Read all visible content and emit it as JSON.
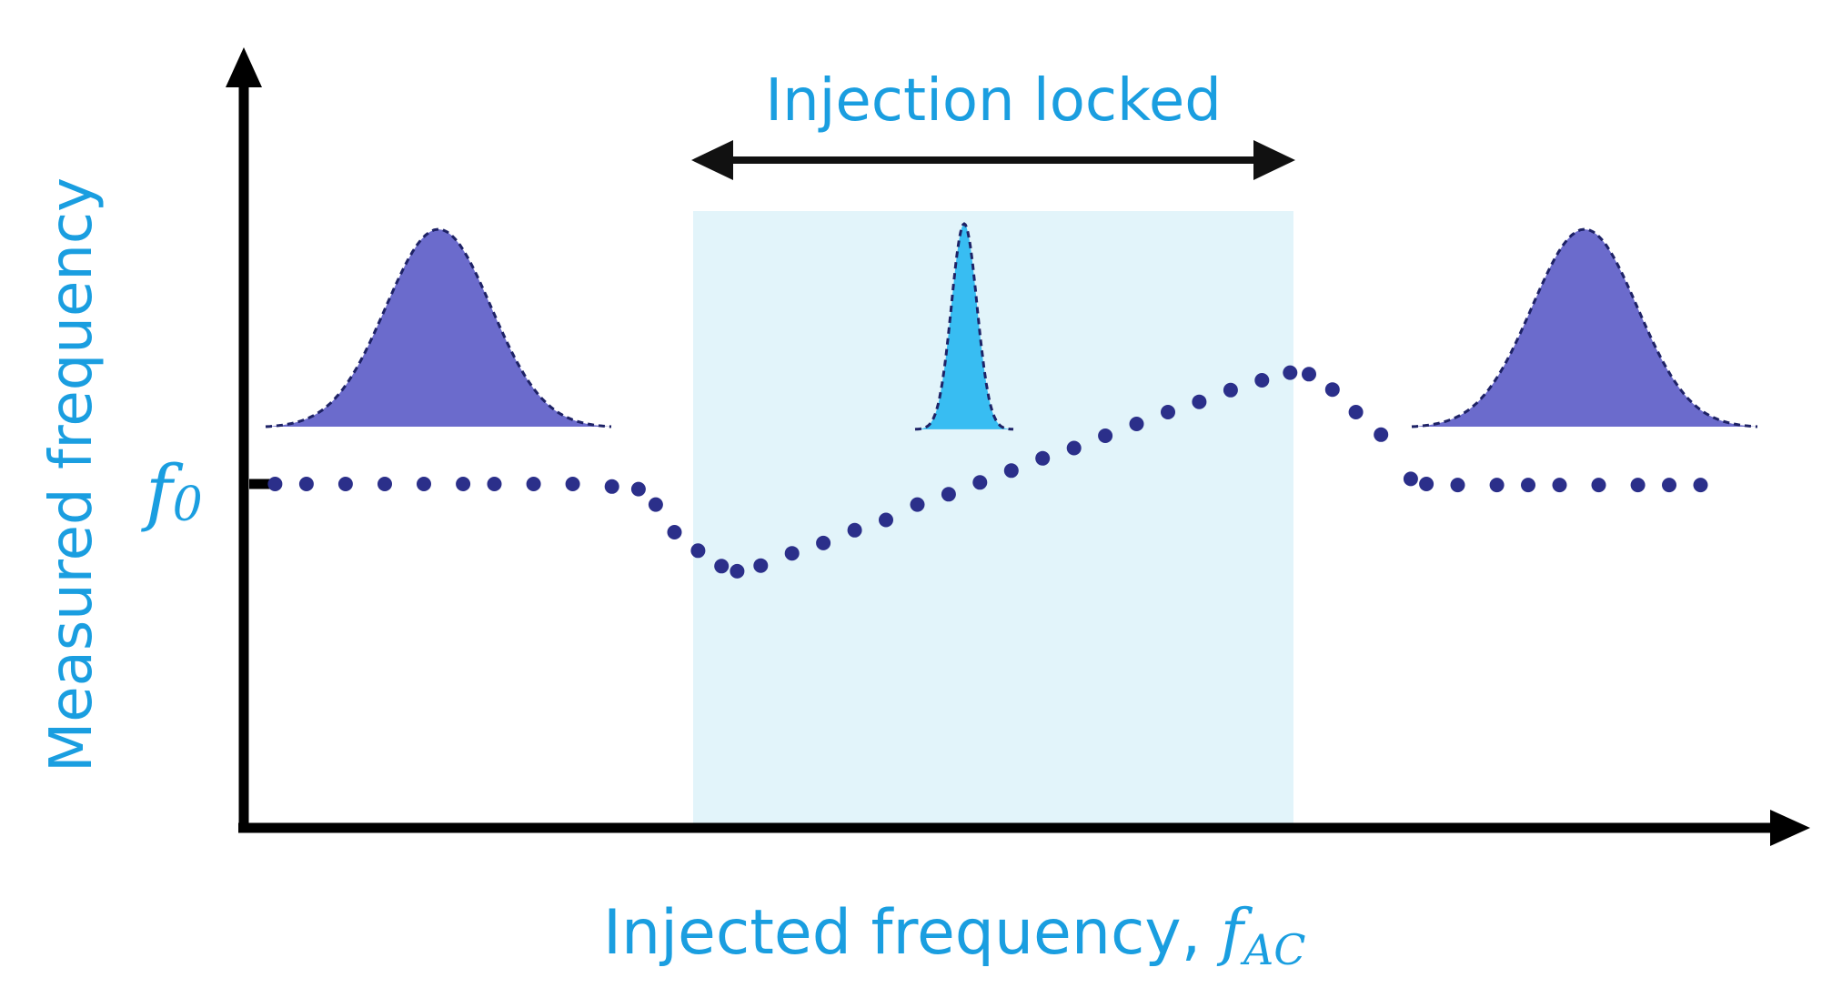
{
  "colors": {
    "accent": "#1a9ee0",
    "axis": "#000000",
    "dots": "#2b2f8a",
    "peak_broad": "#6b6bcc",
    "peak_outline": "#1e2266",
    "peak_narrow": "#38bdf2",
    "locked_region": "#e2f4fa",
    "arrow": "#111111"
  },
  "labels": {
    "top_region": "Injection locked",
    "y_axis": "Measured frequency",
    "x_axis": "Injected frequency, ",
    "x_axis_symbol": "f",
    "x_axis_subscript": "AC",
    "y_tick_symbol": "f",
    "y_tick_subscript": "0"
  },
  "chart_data": {
    "type": "scatter",
    "description_note": "",
    "x_range": [
      0,
      1
    ],
    "y_range": [
      0,
      1
    ],
    "locked_range": [
      0.28,
      0.67
    ],
    "f0_level": 0.67,
    "points": [
      [
        0.02,
        0.67
      ],
      [
        0.04,
        0.67
      ],
      [
        0.065,
        0.67
      ],
      [
        0.09,
        0.67
      ],
      [
        0.115,
        0.67
      ],
      [
        0.14,
        0.67
      ],
      [
        0.16,
        0.67
      ],
      [
        0.185,
        0.67
      ],
      [
        0.21,
        0.67
      ],
      [
        0.235,
        0.665
      ],
      [
        0.252,
        0.66
      ],
      [
        0.263,
        0.63
      ],
      [
        0.275,
        0.576
      ],
      [
        0.29,
        0.54
      ],
      [
        0.305,
        0.51
      ],
      [
        0.315,
        0.5
      ],
      [
        0.33,
        0.511
      ],
      [
        0.35,
        0.535
      ],
      [
        0.37,
        0.555
      ],
      [
        0.39,
        0.58
      ],
      [
        0.41,
        0.6
      ],
      [
        0.43,
        0.63
      ],
      [
        0.45,
        0.65
      ],
      [
        0.47,
        0.673
      ],
      [
        0.49,
        0.696
      ],
      [
        0.51,
        0.72
      ],
      [
        0.53,
        0.74
      ],
      [
        0.55,
        0.764
      ],
      [
        0.57,
        0.787
      ],
      [
        0.59,
        0.81
      ],
      [
        0.61,
        0.83
      ],
      [
        0.63,
        0.853
      ],
      [
        0.65,
        0.872
      ],
      [
        0.668,
        0.887
      ],
      [
        0.68,
        0.884
      ],
      [
        0.695,
        0.854
      ],
      [
        0.71,
        0.81
      ],
      [
        0.726,
        0.766
      ],
      [
        0.745,
        0.68
      ],
      [
        0.755,
        0.67
      ],
      [
        0.775,
        0.668
      ],
      [
        0.8,
        0.668
      ],
      [
        0.82,
        0.668
      ],
      [
        0.84,
        0.668
      ],
      [
        0.865,
        0.668
      ],
      [
        0.89,
        0.668
      ],
      [
        0.91,
        0.668
      ],
      [
        0.93,
        0.668
      ]
    ]
  }
}
